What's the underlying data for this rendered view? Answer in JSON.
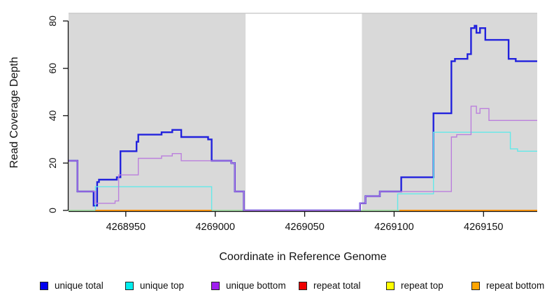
{
  "figure": {
    "x_label": "Coordinate in Reference Genome",
    "y_label": "Read Coverage Depth"
  },
  "chart_data": {
    "type": "line",
    "subtype": "step-coverage-plot",
    "title": "",
    "xlabel": "Coordinate in Reference Genome",
    "ylabel": "Read Coverage Depth",
    "xlim": [
      4268918,
      4269180
    ],
    "ylim": [
      0,
      83
    ],
    "x_ticks": [
      4268950,
      4269000,
      4269050,
      4269100,
      4269150
    ],
    "y_ticks": [
      0,
      20,
      40,
      60,
      80
    ],
    "grid": false,
    "legend_position": "bottom",
    "background_regions": [
      {
        "name": "covered-left",
        "x0": 4268918,
        "x1": 4269017,
        "color": "#d9d9d9"
      },
      {
        "name": "uncovered-gap",
        "x0": 4269017,
        "x1": 4269082,
        "color": "#ffffff"
      },
      {
        "name": "covered-right",
        "x0": 4269082,
        "x1": 4269180,
        "color": "#d9d9d9"
      }
    ],
    "series": [
      {
        "name": "zero baseline (unlabeled)",
        "color": "#95DB95",
        "width": 1.5,
        "in_legend": false,
        "segments": [
          [
            [
              4268918,
              0
            ],
            [
              4269180,
              0
            ]
          ]
        ]
      },
      {
        "name": "unique total",
        "color": "#2222DD",
        "width": 2.4,
        "in_legend": true,
        "segments": [
          [
            [
              4268918,
              21
            ],
            [
              4268923,
              8
            ],
            [
              4268932,
              2
            ],
            [
              4268934,
              12
            ],
            [
              4268935,
              13
            ],
            [
              4268945,
              14
            ],
            [
              4268947,
              25
            ],
            [
              4268956,
              29
            ],
            [
              4268957,
              32
            ],
            [
              4268970,
              33
            ],
            [
              4268976,
              34
            ],
            [
              4268981,
              31
            ],
            [
              4268996,
              30
            ],
            [
              4268998,
              21
            ],
            [
              4269009,
              20
            ],
            [
              4269011,
              8
            ],
            [
              4269016,
              0
            ],
            [
              4269081,
              3
            ],
            [
              4269084,
              6
            ],
            [
              4269092,
              8
            ],
            [
              4269104,
              14
            ],
            [
              4269122,
              41
            ],
            [
              4269132,
              63
            ],
            [
              4269134,
              64
            ],
            [
              4269141,
              66
            ],
            [
              4269143,
              77
            ],
            [
              4269145,
              78
            ],
            [
              4269146,
              75
            ],
            [
              4269148,
              77
            ],
            [
              4269151,
              72
            ],
            [
              4269164,
              64
            ],
            [
              4269168,
              63
            ],
            [
              4269180,
              63
            ]
          ]
        ]
      },
      {
        "name": "unique top",
        "color": "#63E9E9",
        "width": 1.4,
        "in_legend": true,
        "segments": [
          [
            [
              4268933,
              0
            ],
            [
              4268933,
              10
            ],
            [
              4268998,
              10
            ],
            [
              4268998,
              0
            ]
          ],
          [
            [
              4269102,
              0
            ],
            [
              4269102,
              7
            ],
            [
              4269122,
              7
            ],
            [
              4269122,
              33
            ],
            [
              4269165,
              33
            ],
            [
              4269165,
              26
            ],
            [
              4269169,
              26
            ],
            [
              4269169,
              25
            ],
            [
              4269180,
              25
            ]
          ]
        ]
      },
      {
        "name": "unique bottom",
        "color": "#BB7FDD",
        "width": 1.4,
        "in_legend": true,
        "segments": [
          [
            [
              4268918,
              21
            ],
            [
              4268923,
              8
            ],
            [
              4268933,
              3
            ],
            [
              4268944,
              4
            ],
            [
              4268946,
              15
            ],
            [
              4268957,
              22
            ],
            [
              4268970,
              23
            ],
            [
              4268976,
              24
            ],
            [
              4268981,
              21
            ],
            [
              4269009,
              20
            ],
            [
              4269011,
              8
            ],
            [
              4269016,
              0
            ],
            [
              4269081,
              3
            ],
            [
              4269084,
              6
            ],
            [
              4269092,
              8
            ],
            [
              4269132,
              31
            ],
            [
              4269135,
              32
            ],
            [
              4269143,
              44
            ],
            [
              4269146,
              41
            ],
            [
              4269148,
              43
            ],
            [
              4269153,
              38
            ],
            [
              4269180,
              38
            ]
          ]
        ]
      },
      {
        "name": "repeat total",
        "color": "#DD0000",
        "width": 1.4,
        "in_legend": true,
        "segments": [
          [
            [
              4268933,
              0
            ],
            [
              4268998,
              0
            ]
          ],
          [
            [
              4269103,
              0
            ],
            [
              4269180,
              0
            ]
          ]
        ]
      },
      {
        "name": "repeat top",
        "color": "#EEEE00",
        "width": 1.4,
        "in_legend": true,
        "segments": [
          [
            [
              4268933,
              0
            ],
            [
              4268998,
              0
            ]
          ],
          [
            [
              4269103,
              0
            ],
            [
              4269180,
              0
            ]
          ]
        ]
      },
      {
        "name": "repeat bottom",
        "color": "#FF9912",
        "width": 2,
        "in_legend": true,
        "segments": [
          [
            [
              4268933,
              0
            ],
            [
              4268998,
              0
            ]
          ],
          [
            [
              4269103,
              0
            ],
            [
              4269180,
              0
            ]
          ]
        ]
      }
    ],
    "legend": [
      {
        "label": "unique total",
        "color": "#0000EE"
      },
      {
        "label": "unique top",
        "color": "#00EEEE"
      },
      {
        "label": "unique bottom",
        "color": "#A020F0"
      },
      {
        "label": "repeat total",
        "color": "#EE0000"
      },
      {
        "label": "repeat top",
        "color": "#FFFF00"
      },
      {
        "label": "repeat bottom",
        "color": "#FFA500"
      }
    ]
  }
}
